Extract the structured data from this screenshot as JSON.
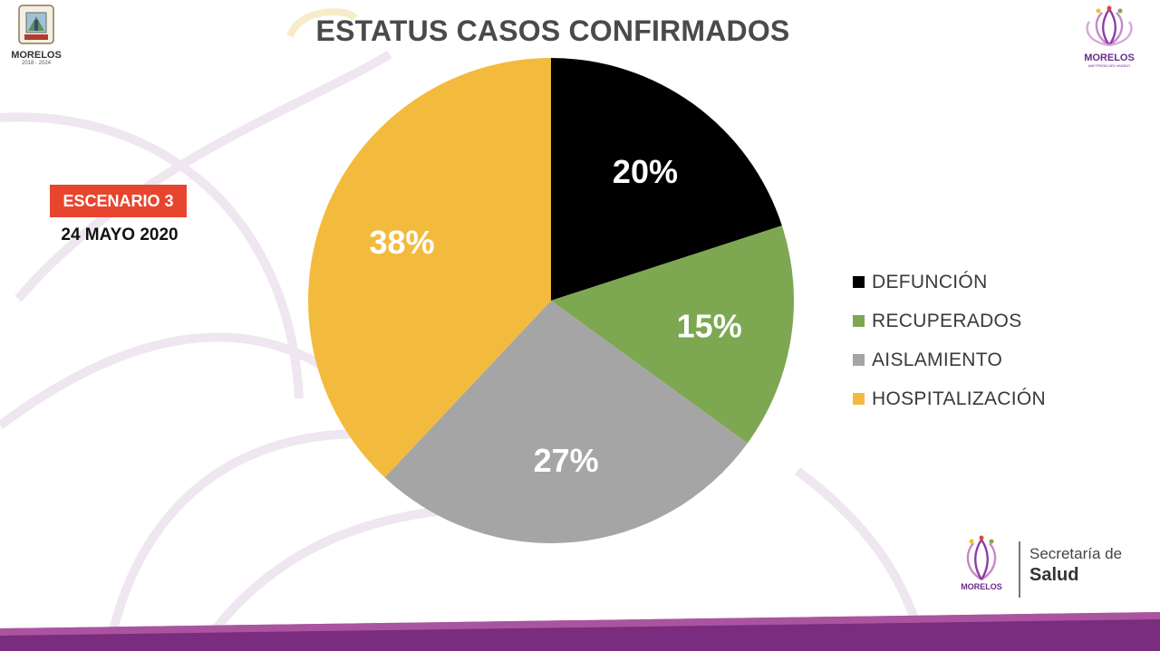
{
  "title": "ESTATUS CASOS CONFIRMADOS",
  "scenario": {
    "badge": "ESCENARIO 3",
    "date": "24 MAYO 2020"
  },
  "logos": {
    "state_seal_name": "MORELOS",
    "state_seal_years": "2018 - 2024",
    "brand_name": "MORELOS",
    "brand_tagline": "ANFITRIÓN DEL MUNDO",
    "secretaria_line1": "Secretaría de",
    "secretaria_line2": "Salud"
  },
  "colors": {
    "accent_red": "#e8452e",
    "brand_purple": "#6b2a8c"
  },
  "chart_data": {
    "type": "pie",
    "title": "ESTATUS CASOS CONFIRMADOS",
    "legend_position": "right",
    "categories": [
      "DEFUNCIÓN",
      "RECUPERADOS",
      "AISLAMIENTO",
      "HOSPITALIZACIÓN"
    ],
    "values": [
      20,
      15,
      27,
      38
    ],
    "labels": [
      "20%",
      "15%",
      "27%",
      "38%"
    ],
    "colors": [
      "#000000",
      "#7ea752",
      "#a5a5a5",
      "#f3bb3e"
    ]
  }
}
